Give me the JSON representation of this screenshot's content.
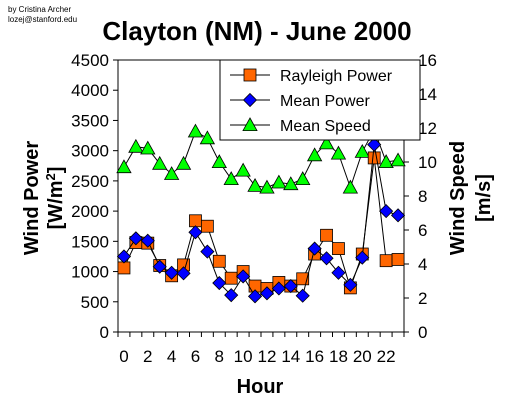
{
  "credit": {
    "line1": "by Cristina Archer",
    "line2": "lozej@stanford.edu"
  },
  "chart_data": {
    "type": "line",
    "title": "Clayton (NM) - June 2000",
    "xlabel": "Hour",
    "ylabel_left": "Wind Power",
    "ylabel_left_units_prefix": "[W/m",
    "ylabel_left_units_sup": "2",
    "ylabel_left_units_suffix": "]",
    "ylabel_right": "Wind Speed",
    "ylabel_right_units": "[m/s]",
    "x": [
      0,
      1,
      2,
      3,
      4,
      5,
      6,
      7,
      8,
      9,
      10,
      11,
      12,
      13,
      14,
      15,
      16,
      17,
      18,
      19,
      20,
      21,
      22,
      23
    ],
    "x_tick_labels": [
      "0",
      "2",
      "4",
      "6",
      "8",
      "10",
      "12",
      "14",
      "16",
      "18",
      "20",
      "22"
    ],
    "ylim_left": [
      0,
      4500
    ],
    "y_ticks_left": [
      "0",
      "500",
      "1000",
      "1500",
      "2000",
      "2500",
      "3000",
      "3500",
      "4000",
      "4500"
    ],
    "ylim_right": [
      0,
      16
    ],
    "y_ticks_right": [
      "0",
      "2",
      "4",
      "6",
      "8",
      "10",
      "12",
      "14",
      "16"
    ],
    "grid": false,
    "legend_position": "top-right",
    "series": [
      {
        "name": "Rayleigh Power",
        "axis": "left",
        "marker": "square",
        "color": "#ff6600",
        "values": [
          1060,
          1480,
          1470,
          1100,
          930,
          1110,
          1840,
          1750,
          1170,
          890,
          1000,
          760,
          720,
          820,
          760,
          880,
          1290,
          1600,
          1380,
          730,
          1290,
          2880,
          1180,
          1200
        ]
      },
      {
        "name": "Mean Power",
        "axis": "left",
        "marker": "diamond",
        "color": "#0000ff",
        "values": [
          1250,
          1550,
          1510,
          1080,
          980,
          970,
          1650,
          1330,
          810,
          610,
          920,
          590,
          640,
          720,
          760,
          600,
          1380,
          1220,
          980,
          780,
          1230,
          3100,
          2000,
          1930
        ]
      },
      {
        "name": "Mean Speed",
        "axis": "right",
        "marker": "triangle",
        "color": "#00ff00",
        "values": [
          9.7,
          10.9,
          10.8,
          9.9,
          9.3,
          9.9,
          11.8,
          11.4,
          10.0,
          9.0,
          9.5,
          8.6,
          8.5,
          8.8,
          8.7,
          9.0,
          10.4,
          11.1,
          10.5,
          8.5,
          10.6,
          11.9,
          10.0,
          10.1
        ]
      }
    ]
  }
}
